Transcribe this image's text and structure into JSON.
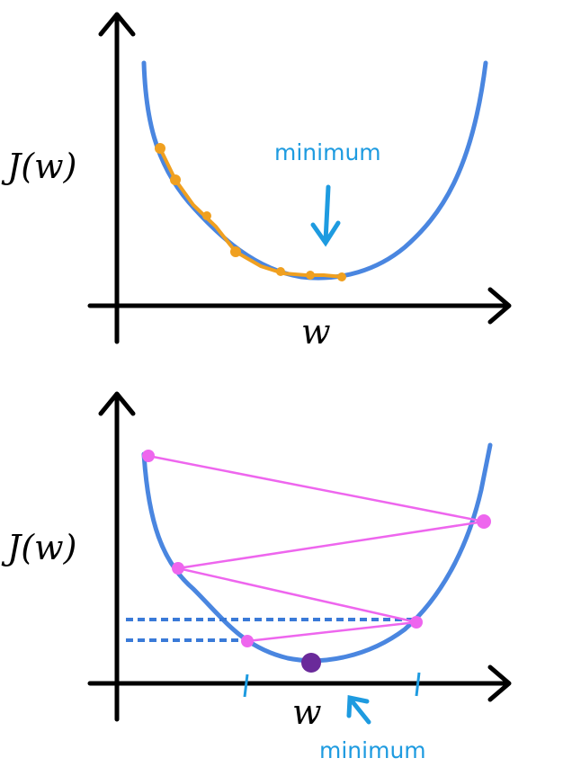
{
  "panels": [
    {
      "y_label": "J(w)",
      "x_label": "w",
      "annotation": "minimum"
    },
    {
      "y_label": "J(w)",
      "x_label": "w",
      "annotation": "minimum"
    }
  ]
}
